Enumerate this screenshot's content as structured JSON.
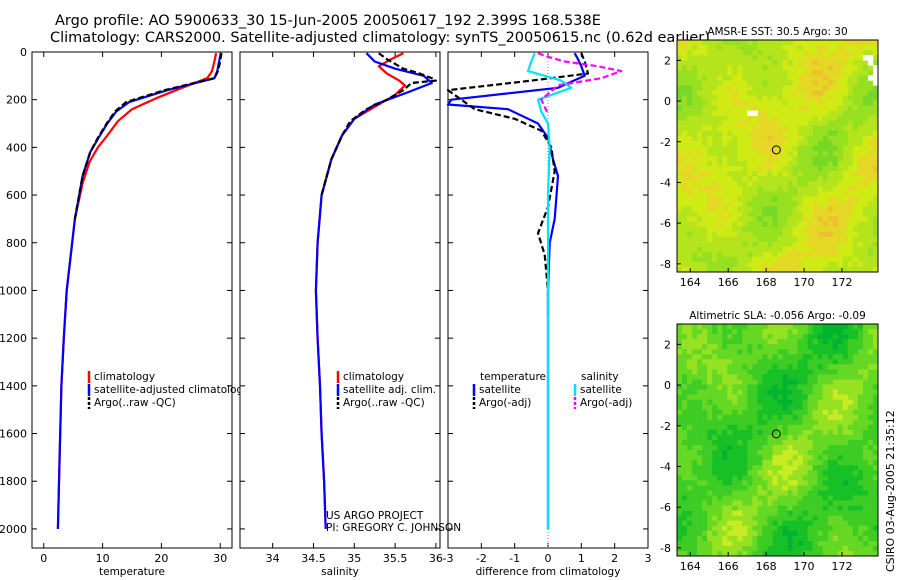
{
  "header": {
    "title_line1": "Argo profile: AO 5900633_30 15-Jun-2005 20050617_192 2.399S 168.538E",
    "title_line2": "Climatology: CARS2000. Satellite-adjusted climatology: synTS_20050615.nc (0.62d earlier)"
  },
  "credit": {
    "line1": "US ARGO PROJECT",
    "line2": "PI: GREGORY C. JOHNSON"
  },
  "timestamp": "CSIRO 03-Aug-2005 21:35:12",
  "colors": {
    "climatology": "#ff0000",
    "satellite": "#0000ff",
    "argo": "#000000",
    "sal_satellite": "#00e0ff",
    "sal_argo": "#ff00ff"
  },
  "chart_data": [
    {
      "type": "line",
      "id": "temperature",
      "xlabel": "temperature",
      "ylabel": "",
      "xlim": [
        -2,
        32
      ],
      "ylim": [
        2080,
        0
      ],
      "xticks": [
        0,
        10,
        20,
        30
      ],
      "xtick_labels": [
        "0",
        "10",
        "20",
        "30"
      ],
      "yticks": [
        0,
        200,
        400,
        600,
        800,
        1000,
        1200,
        1400,
        1600,
        1800,
        2000
      ],
      "ytick_labels": [
        "0",
        "200",
        "400",
        "600",
        "800",
        "1000",
        "1200",
        "1400",
        "1600",
        "1800",
        "2000"
      ],
      "legend_position": "lower-right",
      "series": [
        {
          "name": "climatology",
          "color": "#ff0000",
          "dash": "solid",
          "x": [
            29.3,
            29.0,
            28.6,
            27.8,
            23.5,
            19.5,
            15.0,
            12.6,
            10.8,
            9.2,
            7.8,
            6.6,
            5.3,
            4.6,
            3.9,
            3.4,
            3.0,
            2.7,
            2.4
          ],
          "y": [
            5,
            40,
            80,
            110,
            150,
            190,
            240,
            290,
            350,
            400,
            460,
            550,
            700,
            850,
            1000,
            1200,
            1400,
            1700,
            2000
          ]
        },
        {
          "name": "satellite-adjusted climatology",
          "color": "#0000ff",
          "dash": "solid",
          "x": [
            30.1,
            29.8,
            29.5,
            29.0,
            21.0,
            14.5,
            12.3,
            10.8,
            9.3,
            7.9,
            6.6,
            5.3,
            4.6,
            3.9,
            3.4,
            3.0,
            2.7,
            2.4
          ],
          "y": [
            5,
            40,
            80,
            110,
            160,
            210,
            250,
            300,
            360,
            420,
            520,
            700,
            850,
            1000,
            1200,
            1400,
            1700,
            2000
          ]
        },
        {
          "name": "Argo(..raw -QC)",
          "color": "#000000",
          "dash": "6,3",
          "x": [
            30.2,
            30.0,
            29.6,
            29.0,
            20.5,
            14.0,
            12.1,
            10.7,
            9.2,
            7.9,
            6.6,
            5.3
          ],
          "y": [
            5,
            40,
            80,
            110,
            160,
            210,
            250,
            300,
            360,
            420,
            520,
            700
          ]
        }
      ]
    },
    {
      "type": "line",
      "id": "salinity",
      "xlabel": "salinity",
      "ylabel": "",
      "xlim": [
        33.6,
        36.05
      ],
      "ylim": [
        2080,
        0
      ],
      "xticks": [
        34,
        34.5,
        35,
        35.5,
        36
      ],
      "xtick_labels": [
        "34",
        "34.5",
        "35",
        "35.5",
        "36"
      ],
      "legend_position": "lower-right",
      "series": [
        {
          "name": "climatology",
          "color": "#ff0000",
          "dash": "solid",
          "x": [
            35.6,
            35.45,
            35.3,
            35.4,
            35.55,
            35.62,
            35.5,
            35.25,
            35.0,
            34.85,
            34.72,
            34.6,
            34.55,
            34.53,
            34.55,
            34.58,
            34.6,
            34.63,
            34.65
          ],
          "y": [
            5,
            30,
            60,
            90,
            120,
            140,
            180,
            230,
            280,
            350,
            450,
            600,
            800,
            1000,
            1200,
            1400,
            1600,
            1800,
            2000
          ]
        },
        {
          "name": "satellite adj. clim.",
          "color": "#0000ff",
          "dash": "solid",
          "x": [
            35.15,
            35.25,
            35.5,
            35.85,
            35.95,
            35.65,
            35.25,
            35.0,
            34.85,
            34.72,
            34.6,
            34.55,
            34.53,
            34.55,
            34.58,
            34.6,
            34.63,
            34.65
          ],
          "y": [
            5,
            40,
            70,
            100,
            130,
            170,
            220,
            280,
            350,
            450,
            600,
            800,
            1000,
            1200,
            1400,
            1600,
            1800,
            2000
          ]
        },
        {
          "name": "Argo(..raw -QC)",
          "color": "#000000",
          "dash": "6,3",
          "x": [
            35.3,
            35.4,
            35.5,
            35.6,
            35.8,
            35.95,
            36.0,
            35.7,
            35.6,
            35.4,
            35.15,
            34.95,
            34.85,
            34.72,
            34.6
          ],
          "y": [
            5,
            30,
            50,
            70,
            90,
            110,
            120,
            130,
            160,
            200,
            240,
            290,
            350,
            450,
            600
          ]
        }
      ]
    },
    {
      "type": "line",
      "id": "difference",
      "xlabel": "difference from climatology",
      "xlim": [
        -3,
        3
      ],
      "ylim": [
        2080,
        0
      ],
      "xticks": [
        -3,
        -2,
        -1,
        0,
        1,
        2,
        3
      ],
      "xtick_labels": [
        "-3",
        "-2",
        "-1",
        "0",
        "1",
        "2",
        "3"
      ],
      "legend_position": "lower-right",
      "legend_groups": [
        {
          "title": "temperature",
          "items": [
            {
              "name": "satellite",
              "color": "#0000ff",
              "dash": "solid"
            },
            {
              "name": "Argo(-adj)",
              "color": "#000000",
              "dash": "6,3"
            }
          ]
        },
        {
          "title": "salinity",
          "items": [
            {
              "name": "satellite",
              "color": "#00e0ff",
              "dash": "solid"
            },
            {
              "name": "Argo(-adj)",
              "color": "#ff00ff",
              "dash": "6,3"
            }
          ]
        }
      ],
      "series": [
        {
          "name": "temperature satellite",
          "color": "#0000ff",
          "dash": "solid",
          "x": [
            0.8,
            0.9,
            1.0,
            1.1,
            0.3,
            -2.9,
            -3.0,
            -1.2,
            -0.3,
            0.0,
            0.1,
            0.15,
            0.3,
            0.2,
            0.05,
            0.0,
            0.0,
            0.0
          ],
          "y": [
            5,
            30,
            60,
            100,
            150,
            200,
            220,
            240,
            300,
            360,
            420,
            450,
            520,
            700,
            800,
            1000,
            1500,
            2000
          ]
        },
        {
          "name": "temperature Argo(-adj)",
          "color": "#000000",
          "dash": "6,3",
          "x": [
            1.0,
            1.1,
            1.2,
            -0.5,
            -3.0,
            -2.2,
            -1.0,
            -0.2,
            0.1,
            0.2,
            0.0,
            -0.3,
            -0.1,
            0.0,
            0.0
          ],
          "y": [
            5,
            40,
            90,
            120,
            160,
            240,
            280,
            330,
            400,
            500,
            650,
            760,
            850,
            1000,
            1100
          ]
        },
        {
          "name": "salinity satellite",
          "color": "#00e0ff",
          "dash": "solid",
          "x": [
            -0.4,
            -0.5,
            -0.6,
            0.4,
            0.7,
            -0.3,
            -0.2,
            0.0,
            0.05,
            0.0,
            0.0,
            0.0
          ],
          "y": [
            5,
            40,
            80,
            120,
            150,
            200,
            250,
            300,
            400,
            600,
            1000,
            2000
          ]
        },
        {
          "name": "salinity Argo(-adj)",
          "color": "#ff00ff",
          "dash": "6,3",
          "x": [
            -0.3,
            0.0,
            0.5,
            1.5,
            2.2,
            1.6,
            0.3,
            -0.2,
            0.0
          ],
          "y": [
            5,
            20,
            40,
            60,
            80,
            110,
            140,
            200,
            260
          ]
        }
      ]
    },
    {
      "type": "heatmap",
      "id": "sst_map",
      "title": "AMSR-E SST: 30.5 Argo: 30",
      "xlim": [
        163.3,
        173.9
      ],
      "ylim": [
        -8.4,
        3.0
      ],
      "xticks": [
        164,
        166,
        168,
        170,
        172
      ],
      "xtick_labels": [
        "164",
        "166",
        "168",
        "170",
        "172"
      ],
      "yticks": [
        2,
        0,
        -2,
        -4,
        -6,
        -8
      ],
      "ytick_labels": [
        "2",
        "0",
        "-2",
        "-4",
        "-6",
        "-8"
      ],
      "marker": {
        "lon": 168.538,
        "lat": -2.399
      },
      "palette": [
        "#78d828",
        "#96e020",
        "#b4e41c",
        "#d0ea14",
        "#e4d824",
        "#ecc030"
      ]
    },
    {
      "type": "heatmap",
      "id": "sla_map",
      "title": "Altimetric SLA: -0.056 Argo: -0.09",
      "xlim": [
        163.3,
        173.9
      ],
      "ylim": [
        -8.4,
        3.0
      ],
      "xticks": [
        164,
        166,
        168,
        170,
        172
      ],
      "xtick_labels": [
        "164",
        "166",
        "168",
        "170",
        "172"
      ],
      "yticks": [
        2,
        0,
        -2,
        -4,
        -6,
        -8
      ],
      "ytick_labels": [
        "2",
        "0",
        "-2",
        "-4",
        "-6",
        "-8"
      ],
      "marker": {
        "lon": 168.538,
        "lat": -2.399
      },
      "palette": [
        "#00b430",
        "#18c028",
        "#3ccc24",
        "#64d822",
        "#96e222",
        "#c8ec22"
      ]
    }
  ]
}
